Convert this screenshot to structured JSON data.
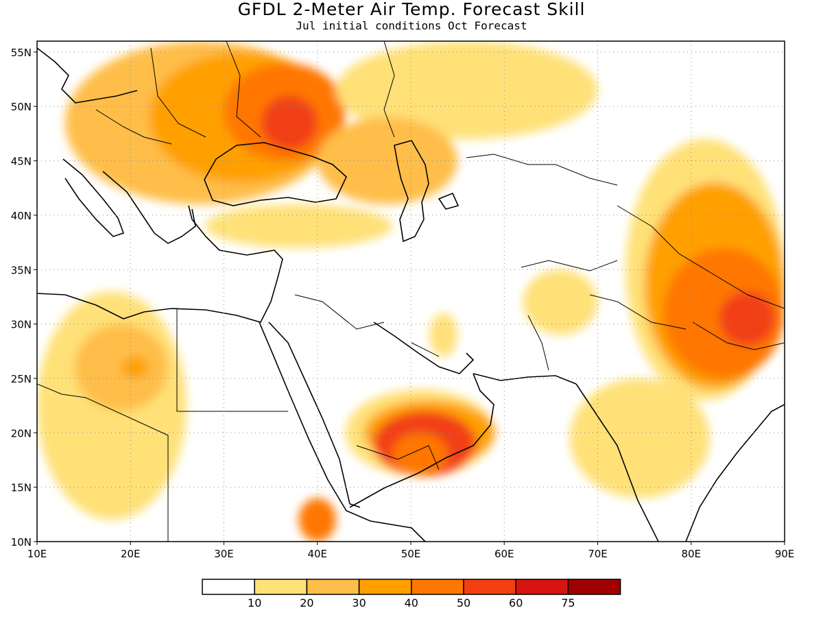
{
  "title": "GFDL 2-Meter Air Temp. Forecast Skill",
  "subtitle": "Jul initial conditions  Oct Forecast",
  "map": {
    "lon_range": [
      10,
      90
    ],
    "lat_range": [
      10,
      56
    ],
    "lon_ticks": [
      "10E",
      "20E",
      "30E",
      "40E",
      "50E",
      "60E",
      "70E",
      "80E",
      "90E"
    ],
    "lat_ticks": [
      "10N",
      "15N",
      "20N",
      "25N",
      "30N",
      "35N",
      "40N",
      "45N",
      "50N",
      "55N"
    ],
    "grid": "dotted"
  },
  "legend": {
    "colors": [
      "#ffffff",
      "#ffe178",
      "#ffbe4a",
      "#ffa000",
      "#ff7700",
      "#f13f12",
      "#d8140f",
      "#a00000"
    ],
    "labels": [
      "10",
      "20",
      "30",
      "40",
      "50",
      "60",
      "75"
    ]
  },
  "skill_regions": [
    {
      "level": 2,
      "lon": [
        13,
        42
      ],
      "lat": [
        41,
        56
      ]
    },
    {
      "level": 3,
      "lon": [
        22,
        42
      ],
      "lat": [
        43,
        55
      ]
    },
    {
      "level": 4,
      "lon": [
        30,
        43
      ],
      "lat": [
        45,
        54
      ]
    },
    {
      "level": 5,
      "lon": [
        34,
        40
      ],
      "lat": [
        46,
        51
      ]
    },
    {
      "level": 1,
      "lon": [
        42,
        70
      ],
      "lat": [
        47,
        56
      ]
    },
    {
      "level": 2,
      "lon": [
        40,
        55
      ],
      "lat": [
        41,
        49
      ]
    },
    {
      "level": 1,
      "lon": [
        28,
        48
      ],
      "lat": [
        37,
        41
      ]
    },
    {
      "level": 1,
      "lon": [
        10,
        26
      ],
      "lat": [
        12,
        33
      ]
    },
    {
      "level": 2,
      "lon": [
        14,
        24
      ],
      "lat": [
        22,
        30
      ]
    },
    {
      "level": 3,
      "lon": [
        19,
        22
      ],
      "lat": [
        25,
        27
      ]
    },
    {
      "level": 1,
      "lon": [
        43,
        59
      ],
      "lat": [
        16,
        24
      ]
    },
    {
      "level": 3,
      "lon": [
        45,
        59
      ],
      "lat": [
        17,
        23
      ]
    },
    {
      "level": 5,
      "lon": [
        46,
        57
      ],
      "lat": [
        16,
        22
      ]
    },
    {
      "level": 4,
      "lon": [
        48,
        54
      ],
      "lat": [
        16,
        20
      ]
    },
    {
      "level": 1,
      "lon": [
        62,
        70
      ],
      "lat": [
        29,
        35
      ]
    },
    {
      "level": 1,
      "lon": [
        73,
        90
      ],
      "lat": [
        23,
        47
      ]
    },
    {
      "level": 3,
      "lon": [
        75,
        90
      ],
      "lat": [
        24,
        43
      ]
    },
    {
      "level": 4,
      "lon": [
        77,
        90
      ],
      "lat": [
        25,
        37
      ]
    },
    {
      "level": 5,
      "lon": [
        83,
        89
      ],
      "lat": [
        28,
        33
      ]
    },
    {
      "level": 1,
      "lon": [
        67,
        82
      ],
      "lat": [
        14,
        25
      ]
    },
    {
      "level": 4,
      "lon": [
        38,
        42
      ],
      "lat": [
        10,
        14
      ]
    },
    {
      "level": 1,
      "lon": [
        52,
        55
      ],
      "lat": [
        27,
        31
      ]
    }
  ]
}
